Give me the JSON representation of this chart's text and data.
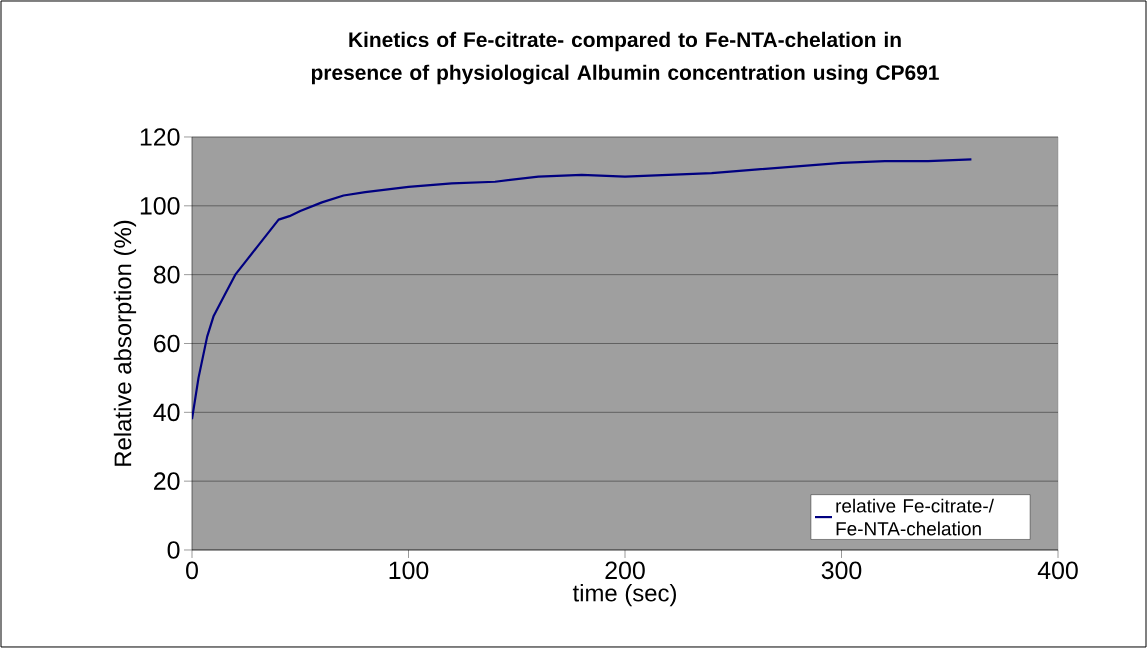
{
  "chart_data": {
    "type": "line",
    "title": "Kinetics of Fe-citrate- compared to Fe-NTA-chelation in presence of physiological Albumin concentration using CP691",
    "xlabel": "time (sec)",
    "ylabel": "Relative absorption (%)",
    "x": [
      0,
      3,
      7,
      10,
      15,
      20,
      25,
      30,
      35,
      40,
      45,
      50,
      60,
      70,
      80,
      100,
      120,
      140,
      160,
      180,
      200,
      220,
      240,
      260,
      280,
      300,
      320,
      340,
      360
    ],
    "series": [
      {
        "name": "relative Fe-citrate-/ Fe-NTA-chelation",
        "color": "#000080",
        "values": [
          38,
          50,
          62,
          68,
          74,
          80,
          84,
          88,
          92,
          96,
          97,
          98.5,
          101,
          103,
          104,
          105.5,
          106.5,
          107,
          108.5,
          109,
          108.5,
          109,
          109.5,
          110.5,
          111.5,
          112.5,
          113,
          113,
          113.5
        ]
      }
    ],
    "xlim": [
      0,
      400
    ],
    "ylim": [
      0,
      120
    ],
    "xticks": [
      0,
      100,
      200,
      300,
      400
    ],
    "yticks": [
      0,
      20,
      40,
      60,
      80,
      100,
      120
    ],
    "grid": "y",
    "legend": "right"
  }
}
